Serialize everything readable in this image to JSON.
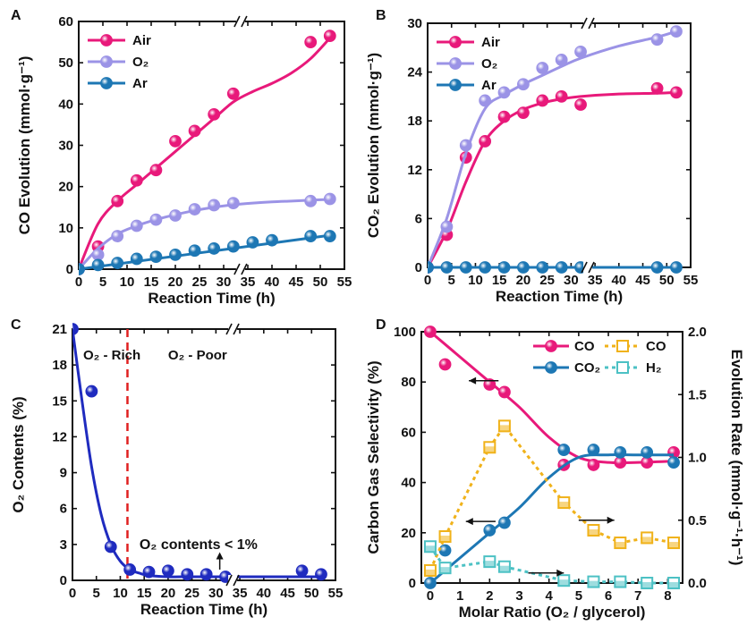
{
  "colors": {
    "air": "#e8197a",
    "o2": "#9b93e6",
    "ar": "#1d77b4",
    "c_o2": "#1f2bbf",
    "divider": "#e02020",
    "co_sel": "#e8197a",
    "co2_sel": "#1d77b4",
    "co_rate": "#f0b21a",
    "h2_rate": "#4cc1c4"
  },
  "chart_data": [
    {
      "panel": "A",
      "type": "scatter",
      "xlabel": "Reaction Time (h)",
      "ylabel": "CO Evolution (mmol·g⁻¹)",
      "xlim": [
        0,
        55
      ],
      "ylim": [
        0,
        60
      ],
      "xticks": [
        "0",
        "5",
        "10",
        "15",
        "20",
        "25",
        "30",
        "35",
        "40",
        "45",
        "50",
        "55"
      ],
      "yticks": [
        "0",
        "10",
        "20",
        "30",
        "40",
        "50",
        "60"
      ],
      "x_break": true,
      "series": [
        {
          "name": "Air",
          "color_key": "air",
          "x": [
            0,
            4,
            8,
            12,
            16,
            20,
            24,
            28,
            32,
            48,
            52
          ],
          "y": [
            0,
            5.5,
            16.5,
            21.5,
            24,
            31,
            33.5,
            37.5,
            42.5,
            55,
            56.5
          ],
          "fit_x": [
            0,
            4,
            8,
            12,
            16,
            20,
            24,
            28,
            32,
            36,
            40,
            44,
            48,
            52
          ],
          "fit_y": [
            0,
            11,
            16.5,
            20.5,
            24.5,
            28.5,
            32.5,
            36.5,
            40.5,
            43,
            45,
            47.5,
            51,
            56
          ]
        },
        {
          "name": "O₂",
          "color_key": "o2",
          "x": [
            0,
            4,
            8,
            12,
            16,
            20,
            24,
            28,
            32,
            48,
            52
          ],
          "y": [
            0,
            3.5,
            8,
            10.5,
            12,
            13,
            14.5,
            15.5,
            16,
            16.5,
            17
          ],
          "fit_x": [
            0,
            4,
            8,
            12,
            16,
            20,
            24,
            28,
            32,
            36,
            40,
            44,
            48,
            52
          ],
          "fit_y": [
            0,
            5,
            8.5,
            10.5,
            12,
            13.2,
            14.2,
            15,
            15.6,
            16,
            16.3,
            16.5,
            16.7,
            16.9
          ]
        },
        {
          "name": "Ar",
          "color_key": "ar",
          "x": [
            0,
            4,
            8,
            12,
            16,
            20,
            24,
            28,
            32,
            36,
            40,
            48,
            52
          ],
          "y": [
            0,
            1,
            1.5,
            2.5,
            3,
            3.5,
            4.5,
            5,
            5.5,
            6.5,
            7,
            8,
            8
          ],
          "fit_x": [
            0,
            52
          ],
          "fit_y": [
            0,
            8.2
          ]
        }
      ]
    },
    {
      "panel": "B",
      "type": "scatter",
      "xlabel": "Reaction Time (h)",
      "ylabel": "CO₂ Evolution (mmol·g⁻¹)",
      "xlim": [
        0,
        55
      ],
      "ylim": [
        0,
        30
      ],
      "xticks": [
        "0",
        "5",
        "10",
        "15",
        "20",
        "25",
        "30",
        "35",
        "40",
        "45",
        "50",
        "55"
      ],
      "yticks": [
        "0",
        "6",
        "12",
        "18",
        "24",
        "30"
      ],
      "x_break": true,
      "series": [
        {
          "name": "Air",
          "color_key": "air",
          "x": [
            0,
            4,
            8,
            12,
            16,
            20,
            24,
            28,
            32,
            48,
            52
          ],
          "y": [
            0,
            4,
            13.5,
            15.5,
            18.5,
            19,
            20.5,
            21,
            20,
            22,
            21.5
          ],
          "fit_x": [
            0,
            4,
            8,
            12,
            16,
            20,
            24,
            28,
            32,
            40,
            48,
            52
          ],
          "fit_y": [
            0,
            4.5,
            10.5,
            15.5,
            18,
            19.4,
            20.2,
            20.7,
            21,
            21.3,
            21.4,
            21.5
          ]
        },
        {
          "name": "O₂",
          "color_key": "o2",
          "x": [
            0,
            4,
            8,
            12,
            16,
            20,
            24,
            28,
            32,
            48,
            52
          ],
          "y": [
            0,
            5,
            15,
            20.5,
            21.5,
            22.5,
            24.5,
            25.5,
            26.5,
            28,
            29
          ],
          "fit_x": [
            0,
            4,
            8,
            12,
            16,
            20,
            24,
            28,
            32,
            40,
            48,
            52
          ],
          "fit_y": [
            0,
            6,
            14,
            19.5,
            21.2,
            22.5,
            23.6,
            24.7,
            25.7,
            27.2,
            28.3,
            29
          ]
        },
        {
          "name": "Ar",
          "color_key": "ar",
          "x": [
            0,
            4,
            8,
            12,
            16,
            20,
            24,
            28,
            32,
            48,
            52
          ],
          "y": [
            0,
            0,
            0,
            0,
            0,
            0,
            0,
            0,
            0,
            0,
            0
          ],
          "fit_x": [
            0,
            52
          ],
          "fit_y": [
            0,
            0
          ]
        }
      ]
    },
    {
      "panel": "C",
      "type": "scatter",
      "xlabel": "Reaction Time (h)",
      "ylabel": "O₂ Contents (%)",
      "xlim": [
        0,
        55
      ],
      "ylim": [
        0,
        21
      ],
      "xticks": [
        "0",
        "5",
        "10",
        "15",
        "20",
        "25",
        "30",
        "35",
        "40",
        "45",
        "50",
        "55"
      ],
      "yticks": [
        "0",
        "3",
        "6",
        "9",
        "12",
        "15",
        "18",
        "21"
      ],
      "x_break": true,
      "divider_x": 11.5,
      "region_labels": [
        "O₂ - Rich",
        "O₂ - Poor"
      ],
      "annotation": "O₂ contents < 1%",
      "series": [
        {
          "name": "O₂ contents",
          "color_key": "c_o2",
          "x": [
            0,
            4,
            8,
            12,
            16,
            20,
            24,
            28,
            32,
            48,
            52
          ],
          "y": [
            21,
            15.8,
            2.8,
            0.9,
            0.7,
            0.8,
            0.5,
            0.5,
            0.3,
            0.8,
            0.5
          ],
          "fit_x": [
            0,
            2,
            4,
            6,
            8,
            10,
            12,
            14,
            16,
            20,
            24,
            28,
            32,
            40,
            52
          ],
          "fit_y": [
            21,
            15,
            9.5,
            5.5,
            3,
            1.6,
            0.9,
            0.6,
            0.4,
            0.3,
            0.3,
            0.3,
            0.3,
            0.3,
            0.3
          ]
        }
      ]
    },
    {
      "panel": "D",
      "type": "line",
      "xlabel": "Molar Ratio (O₂ / glycerol)",
      "ylabel": "Carbon Gas Selectivity (%)",
      "y2label": "Evolution Rate (mmol·g⁻¹·h⁻¹)",
      "xlim": [
        -0.3,
        8.5
      ],
      "ylim": [
        0,
        100
      ],
      "y2lim": [
        0,
        2.0
      ],
      "xticks": [
        "0",
        "1",
        "2",
        "3",
        "4",
        "5",
        "6",
        "7",
        "8"
      ],
      "yticks": [
        "0",
        "20",
        "40",
        "60",
        "80",
        "100"
      ],
      "y2ticks": [
        "0.0",
        "0.5",
        "1.0",
        "1.5",
        "2.0"
      ],
      "series": [
        {
          "name": "CO",
          "axis": "left",
          "color_key": "co_sel",
          "style": "solid",
          "x": [
            0,
            0.5,
            2,
            2.5,
            4.5,
            5.5,
            6.4,
            7.3,
            8.2
          ],
          "y": [
            100,
            87,
            79,
            76,
            47,
            47,
            48,
            48,
            52
          ],
          "fit_x": [
            0,
            1,
            2,
            3,
            4,
            5,
            6,
            7,
            8.2
          ],
          "fit_y": [
            100,
            90,
            80,
            70,
            58,
            50,
            48,
            48,
            48.5
          ]
        },
        {
          "name": "CO₂",
          "axis": "left",
          "color_key": "co2_sel",
          "style": "solid",
          "x": [
            0,
            0.5,
            2,
            2.5,
            4.5,
            5.5,
            6.4,
            7.3,
            8.2
          ],
          "y": [
            0,
            13,
            21,
            24,
            53,
            53,
            52,
            52,
            48
          ],
          "fit_x": [
            0,
            1,
            2,
            3,
            4,
            5,
            6,
            7,
            8.2
          ],
          "fit_y": [
            0,
            10,
            20,
            30,
            42,
            50,
            51,
            51,
            51
          ]
        },
        {
          "name": "CO",
          "axis": "right",
          "color_key": "co_rate",
          "style": "dotted",
          "x": [
            0,
            0.5,
            2,
            2.5,
            4.5,
            5.5,
            6.4,
            7.3,
            8.2
          ],
          "y": [
            0.1,
            0.37,
            1.08,
            1.25,
            0.64,
            0.42,
            0.32,
            0.36,
            0.32
          ]
        },
        {
          "name": "H₂",
          "axis": "right",
          "color_key": "h2_rate",
          "style": "dotted",
          "x": [
            0,
            0.5,
            2,
            2.5,
            4.5,
            5.5,
            6.4,
            7.3,
            8.2
          ],
          "y": [
            0.29,
            0.12,
            0.17,
            0.13,
            0.02,
            0.01,
            0.01,
            0.0,
            0.0
          ]
        }
      ]
    }
  ]
}
